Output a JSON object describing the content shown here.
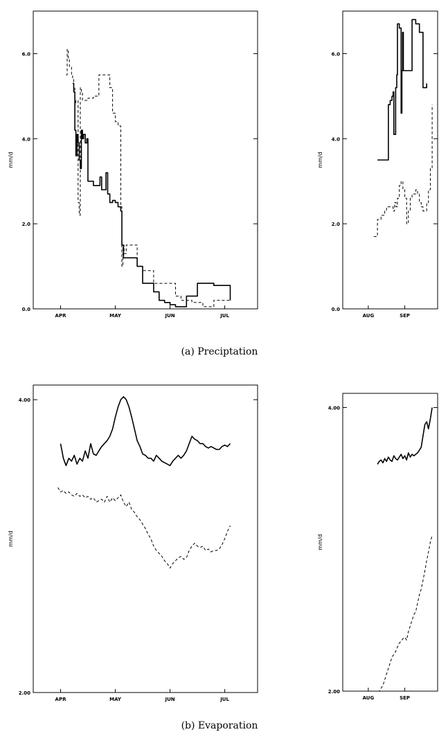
{
  "chart_data": [
    {
      "type": "line",
      "panel": "a-left",
      "step": true,
      "ylabel": "mm/d",
      "ylim": [
        0,
        7
      ],
      "yticks": [
        "0.0",
        "2.0",
        "4.0",
        "6.0"
      ],
      "ytick_values": [
        0,
        2,
        4,
        6
      ],
      "xlim": [
        0,
        4.1
      ],
      "xticks": [
        "APR",
        "MAY",
        "JUN",
        "JUL"
      ],
      "xtick_values": [
        0.5,
        1.5,
        2.5,
        3.5
      ],
      "series": [
        {
          "style": "solid",
          "x": [
            0.72,
            0.74,
            0.76,
            0.78,
            0.8,
            0.82,
            0.84,
            0.86,
            0.88,
            0.9,
            0.92,
            0.95,
            0.98,
            1.0,
            1.1,
            1.2,
            1.22,
            1.25,
            1.3,
            1.33,
            1.36,
            1.4,
            1.45,
            1.5,
            1.55,
            1.6,
            1.62,
            1.65,
            1.75,
            1.9,
            2.0,
            2.1,
            2.2,
            2.3,
            2.4,
            2.5,
            2.6,
            2.8,
            3.0,
            3.1,
            3.3,
            3.6
          ],
          "y": [
            5.3,
            5.1,
            4.2,
            3.6,
            4.1,
            3.9,
            3.5,
            3.3,
            4.2,
            4.0,
            4.1,
            3.9,
            4.0,
            3.0,
            2.9,
            2.9,
            3.1,
            2.8,
            2.8,
            3.2,
            2.7,
            2.5,
            2.55,
            2.5,
            2.4,
            2.3,
            1.5,
            1.2,
            1.2,
            1.0,
            0.6,
            0.6,
            0.4,
            0.2,
            0.15,
            0.1,
            0.05,
            0.3,
            0.6,
            0.6,
            0.55,
            0.2
          ]
        },
        {
          "style": "dashed",
          "x": [
            0.6,
            0.62,
            0.64,
            0.66,
            0.7,
            0.72,
            0.74,
            0.76,
            0.78,
            0.8,
            0.82,
            0.84,
            0.86,
            0.88,
            0.9,
            1.0,
            1.1,
            1.2,
            1.3,
            1.4,
            1.45,
            1.5,
            1.55,
            1.58,
            1.6,
            1.62,
            1.64,
            1.66,
            1.7,
            1.9,
            2.0,
            2.2,
            2.4,
            2.6,
            2.7,
            2.9,
            3.1,
            3.3,
            3.6
          ],
          "y": [
            5.5,
            6.1,
            5.9,
            5.7,
            5.5,
            5.4,
            5.2,
            4.8,
            4.9,
            4.9,
            2.5,
            2.2,
            5.2,
            5.1,
            4.9,
            4.95,
            5.0,
            5.5,
            5.5,
            5.2,
            4.6,
            4.4,
            4.3,
            4.3,
            2.4,
            1.0,
            1.5,
            1.3,
            1.5,
            1.0,
            0.9,
            0.6,
            0.6,
            0.3,
            0.2,
            0.15,
            0.05,
            0.2,
            0.25
          ]
        }
      ]
    },
    {
      "type": "line",
      "panel": "a-right",
      "step": true,
      "ylabel": "mm/d",
      "ylim": [
        0,
        7
      ],
      "yticks": [
        "0.0",
        "2.0",
        "4.0",
        "6.0"
      ],
      "ytick_values": [
        0,
        2,
        4,
        6
      ],
      "xlim": [
        0,
        2.6
      ],
      "xticks": [
        "AUG",
        "SEP"
      ],
      "xtick_values": [
        0.7,
        1.7
      ],
      "series": [
        {
          "style": "solid",
          "x": [
            0.95,
            1.1,
            1.25,
            1.3,
            1.35,
            1.38,
            1.4,
            1.45,
            1.48,
            1.5,
            1.55,
            1.6,
            1.62,
            1.64,
            1.66,
            1.8,
            1.9,
            2.0,
            2.1,
            2.2,
            2.3
          ],
          "y": [
            3.5,
            3.5,
            4.8,
            4.9,
            5.0,
            5.1,
            4.1,
            5.2,
            5.5,
            6.7,
            6.6,
            4.6,
            5.6,
            6.5,
            5.6,
            5.6,
            6.8,
            6.7,
            6.5,
            5.2,
            5.3
          ]
        },
        {
          "style": "dashed",
          "x": [
            0.85,
            0.9,
            0.95,
            1.05,
            1.15,
            1.2,
            1.3,
            1.38,
            1.42,
            1.46,
            1.5,
            1.55,
            1.6,
            1.65,
            1.7,
            1.75,
            1.8,
            1.85,
            1.9,
            1.95,
            2.0,
            2.05,
            2.1,
            2.15,
            2.2,
            2.25,
            2.3,
            2.35,
            2.4,
            2.45
          ],
          "y": [
            1.7,
            1.7,
            2.1,
            2.2,
            2.3,
            2.4,
            2.4,
            2.3,
            2.5,
            2.4,
            2.6,
            2.9,
            3.0,
            2.8,
            2.6,
            2.0,
            2.3,
            2.6,
            2.7,
            2.7,
            2.8,
            2.7,
            2.5,
            2.4,
            2.3,
            2.3,
            2.5,
            2.8,
            3.3,
            4.8
          ]
        }
      ]
    },
    {
      "type": "line",
      "panel": "b-left",
      "ylabel": "mm/d",
      "ylim": [
        2.0,
        4.1
      ],
      "yticks": [
        "2.00",
        "4.00"
      ],
      "ytick_values": [
        2.0,
        4.0
      ],
      "xlim": [
        0,
        4.1
      ],
      "xticks": [
        "APR",
        "MAY",
        "JUN",
        "JUL"
      ],
      "xtick_values": [
        0.5,
        1.5,
        2.5,
        3.5
      ],
      "series": [
        {
          "style": "solid",
          "x": [
            0.5,
            0.55,
            0.6,
            0.65,
            0.7,
            0.75,
            0.8,
            0.85,
            0.9,
            0.95,
            1.0,
            1.05,
            1.1,
            1.15,
            1.2,
            1.25,
            1.3,
            1.35,
            1.4,
            1.45,
            1.5,
            1.55,
            1.6,
            1.65,
            1.7,
            1.75,
            1.8,
            1.85,
            1.9,
            1.95,
            2.0,
            2.05,
            2.1,
            2.15,
            2.2,
            2.25,
            2.3,
            2.35,
            2.4,
            2.45,
            2.5,
            2.55,
            2.6,
            2.65,
            2.7,
            2.75,
            2.8,
            2.85,
            2.9,
            2.95,
            3.0,
            3.05,
            3.1,
            3.15,
            3.2,
            3.25,
            3.3,
            3.35,
            3.4,
            3.45,
            3.5,
            3.55,
            3.6
          ],
          "y": [
            3.7,
            3.6,
            3.55,
            3.6,
            3.58,
            3.62,
            3.56,
            3.6,
            3.58,
            3.65,
            3.6,
            3.7,
            3.63,
            3.62,
            3.65,
            3.68,
            3.7,
            3.72,
            3.75,
            3.8,
            3.88,
            3.95,
            4.0,
            4.02,
            4.0,
            3.95,
            3.88,
            3.8,
            3.72,
            3.68,
            3.63,
            3.62,
            3.6,
            3.6,
            3.58,
            3.62,
            3.6,
            3.58,
            3.57,
            3.56,
            3.55,
            3.58,
            3.6,
            3.62,
            3.6,
            3.62,
            3.65,
            3.7,
            3.75,
            3.73,
            3.72,
            3.7,
            3.7,
            3.68,
            3.67,
            3.68,
            3.67,
            3.66,
            3.66,
            3.68,
            3.69,
            3.68,
            3.7
          ]
        },
        {
          "style": "dashed",
          "x": [
            0.45,
            0.5,
            0.55,
            0.6,
            0.65,
            0.7,
            0.75,
            0.8,
            0.85,
            0.9,
            0.95,
            1.0,
            1.05,
            1.1,
            1.15,
            1.2,
            1.25,
            1.3,
            1.35,
            1.4,
            1.45,
            1.5,
            1.55,
            1.6,
            1.65,
            1.7,
            1.75,
            1.8,
            1.85,
            1.9,
            1.95,
            2.0,
            2.05,
            2.1,
            2.15,
            2.2,
            2.25,
            2.3,
            2.35,
            2.4,
            2.45,
            2.5,
            2.55,
            2.6,
            2.65,
            2.7,
            2.75,
            2.8,
            2.85,
            2.9,
            2.95,
            3.0,
            3.05,
            3.1,
            3.15,
            3.2,
            3.25,
            3.3,
            3.35,
            3.4,
            3.45,
            3.5,
            3.55,
            3.6
          ],
          "y": [
            3.4,
            3.37,
            3.38,
            3.36,
            3.37,
            3.35,
            3.34,
            3.36,
            3.34,
            3.35,
            3.33,
            3.34,
            3.32,
            3.33,
            3.3,
            3.31,
            3.32,
            3.3,
            3.34,
            3.3,
            3.33,
            3.31,
            3.33,
            3.35,
            3.3,
            3.27,
            3.3,
            3.25,
            3.23,
            3.2,
            3.18,
            3.15,
            3.12,
            3.08,
            3.05,
            3.0,
            2.97,
            2.95,
            2.93,
            2.9,
            2.88,
            2.85,
            2.88,
            2.9,
            2.92,
            2.93,
            2.91,
            2.92,
            2.97,
            3.0,
            3.02,
            3.0,
            2.99,
            3.0,
            2.97,
            2.98,
            2.96,
            2.97,
            2.97,
            2.98,
            3.01,
            3.05,
            3.1,
            3.14
          ]
        }
      ]
    },
    {
      "type": "line",
      "panel": "b-right",
      "ylabel": "mm/d",
      "ylim": [
        2.0,
        4.1
      ],
      "yticks": [
        "2.00",
        "4.00"
      ],
      "ytick_values": [
        2.0,
        4.0
      ],
      "xlim": [
        0,
        2.6
      ],
      "xticks": [
        "AUG",
        "SEP"
      ],
      "xtick_values": [
        0.7,
        1.7
      ],
      "series": [
        {
          "style": "solid",
          "x": [
            0.95,
            1.0,
            1.05,
            1.1,
            1.15,
            1.2,
            1.25,
            1.3,
            1.35,
            1.4,
            1.45,
            1.5,
            1.55,
            1.6,
            1.65,
            1.7,
            1.75,
            1.8,
            1.85,
            1.9,
            1.95,
            2.0,
            2.05,
            2.1,
            2.15,
            2.2,
            2.25,
            2.3,
            2.35,
            2.4,
            2.45
          ],
          "y": [
            3.6,
            3.62,
            3.63,
            3.61,
            3.64,
            3.62,
            3.65,
            3.63,
            3.62,
            3.66,
            3.64,
            3.63,
            3.65,
            3.67,
            3.64,
            3.66,
            3.63,
            3.68,
            3.65,
            3.67,
            3.66,
            3.67,
            3.68,
            3.7,
            3.72,
            3.8,
            3.88,
            3.9,
            3.85,
            3.92,
            4.0
          ]
        },
        {
          "style": "dashed",
          "x": [
            0.95,
            1.0,
            1.05,
            1.1,
            1.15,
            1.2,
            1.25,
            1.3,
            1.35,
            1.4,
            1.45,
            1.5,
            1.55,
            1.6,
            1.65,
            1.7,
            1.75,
            1.8,
            1.85,
            1.9,
            1.95,
            2.0,
            2.05,
            2.1,
            2.15,
            2.2,
            2.25,
            2.3,
            2.35,
            2.4,
            2.45
          ],
          "y": [
            2.0,
            2.0,
            2.02,
            2.04,
            2.08,
            2.12,
            2.16,
            2.2,
            2.24,
            2.26,
            2.28,
            2.31,
            2.34,
            2.35,
            2.37,
            2.38,
            2.36,
            2.42,
            2.46,
            2.5,
            2.54,
            2.56,
            2.62,
            2.68,
            2.72,
            2.78,
            2.85,
            2.92,
            2.98,
            3.05,
            3.1
          ]
        }
      ]
    }
  ],
  "captions": {
    "a": "(a) Preciptation",
    "b": "(b) Evaporation"
  }
}
